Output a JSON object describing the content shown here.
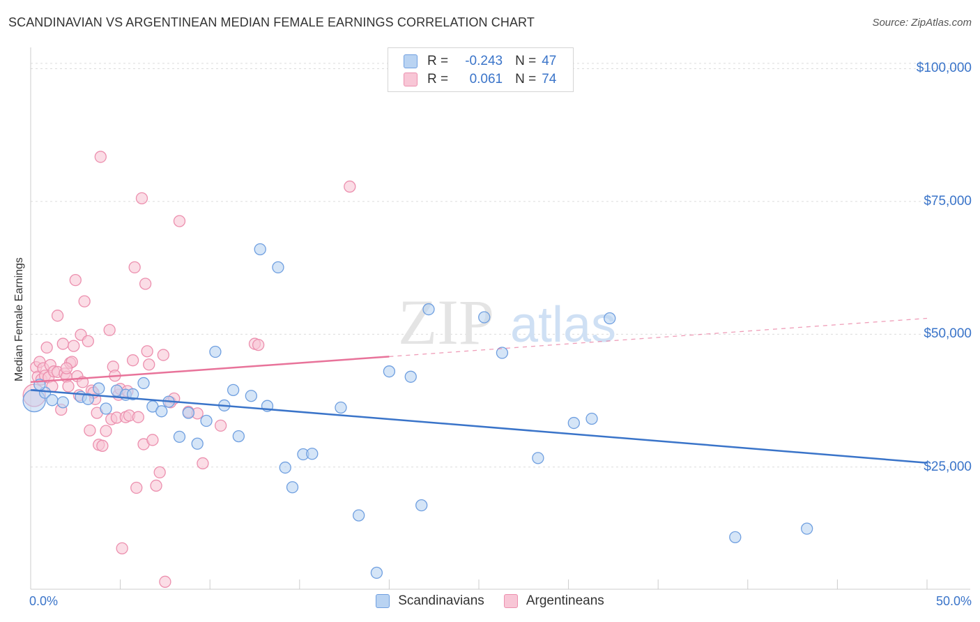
{
  "header": {
    "title": "SCANDINAVIAN VS ARGENTINEAN MEDIAN FEMALE EARNINGS CORRELATION CHART",
    "source": "Source: ZipAtlas.com"
  },
  "watermark": {
    "zip": "ZIP",
    "atlas": "atlas"
  },
  "legend": {
    "rows": [
      {
        "r_label": "R =",
        "r_value": "-0.243",
        "n_label": "N =",
        "n_value": "47",
        "color": "#6f9fe0"
      },
      {
        "r_label": "R =",
        "r_value": "0.061",
        "n_label": "N =",
        "n_value": "74",
        "color": "#ec8fae"
      }
    ]
  },
  "bottom_legend": {
    "series1": "Scandinavians",
    "series2": "Argentineans"
  },
  "colors": {
    "blue": "#3a74c9",
    "blue_fill": "#b9d3f2",
    "blue_stroke": "#6f9fe0",
    "pink": "#e8739a",
    "pink_fill": "#f8c6d6",
    "pink_stroke": "#ec8fae"
  },
  "chart_data": {
    "type": "scatter",
    "title": "SCANDINAVIAN VS ARGENTINEAN MEDIAN FEMALE EARNINGS CORRELATION CHART",
    "xlabel": "",
    "ylabel": "Median Female Earnings",
    "xlim": [
      0,
      50
    ],
    "ylim": [
      2000,
      104000
    ],
    "x_tick_labels": [
      "0.0%",
      "50.0%"
    ],
    "y_ticks": [
      25000,
      50000,
      75000,
      100000
    ],
    "y_tick_labels": [
      "$25,000",
      "$50,000",
      "$75,000",
      "$100,000"
    ],
    "grid": true,
    "series": [
      {
        "name": "Scandinavians",
        "r": -0.243,
        "n": 47,
        "trend": {
          "x0": 0,
          "y0": 39500,
          "x1": 50,
          "y1": 25800,
          "dashed_from": null
        },
        "points": [
          {
            "x": 0.2,
            "y": 37500,
            "big": true
          },
          {
            "x": 0.8,
            "y": 39000
          },
          {
            "x": 1.2,
            "y": 37600
          },
          {
            "x": 1.8,
            "y": 37200
          },
          {
            "x": 2.8,
            "y": 38200
          },
          {
            "x": 3.2,
            "y": 37800
          },
          {
            "x": 3.8,
            "y": 39800
          },
          {
            "x": 4.2,
            "y": 36000
          },
          {
            "x": 4.8,
            "y": 39400
          },
          {
            "x": 5.3,
            "y": 38600
          },
          {
            "x": 5.7,
            "y": 38700
          },
          {
            "x": 6.3,
            "y": 40800
          },
          {
            "x": 6.8,
            "y": 36400
          },
          {
            "x": 7.3,
            "y": 35500
          },
          {
            "x": 7.7,
            "y": 37300
          },
          {
            "x": 8.3,
            "y": 30700
          },
          {
            "x": 8.8,
            "y": 35200
          },
          {
            "x": 9.3,
            "y": 29400
          },
          {
            "x": 9.8,
            "y": 33700
          },
          {
            "x": 10.3,
            "y": 46700
          },
          {
            "x": 10.8,
            "y": 36600
          },
          {
            "x": 11.3,
            "y": 39500
          },
          {
            "x": 11.6,
            "y": 30800
          },
          {
            "x": 12.3,
            "y": 38400
          },
          {
            "x": 12.8,
            "y": 66000
          },
          {
            "x": 13.2,
            "y": 36500
          },
          {
            "x": 13.8,
            "y": 62600
          },
          {
            "x": 14.2,
            "y": 24900
          },
          {
            "x": 14.6,
            "y": 21200
          },
          {
            "x": 15.2,
            "y": 27400
          },
          {
            "x": 15.7,
            "y": 27500
          },
          {
            "x": 17.3,
            "y": 36200
          },
          {
            "x": 18.3,
            "y": 15900
          },
          {
            "x": 19.3,
            "y": 5100
          },
          {
            "x": 20.0,
            "y": 43000
          },
          {
            "x": 21.2,
            "y": 42000
          },
          {
            "x": 21.8,
            "y": 17800
          },
          {
            "x": 22.2,
            "y": 54700
          },
          {
            "x": 25.3,
            "y": 53200
          },
          {
            "x": 26.3,
            "y": 46500
          },
          {
            "x": 28.3,
            "y": 26700
          },
          {
            "x": 30.3,
            "y": 33300
          },
          {
            "x": 31.3,
            "y": 34100
          },
          {
            "x": 32.3,
            "y": 53000
          },
          {
            "x": 39.3,
            "y": 11800
          },
          {
            "x": 43.3,
            "y": 13400
          },
          {
            "x": 0.5,
            "y": 40500
          }
        ]
      },
      {
        "name": "Argentineans",
        "r": 0.061,
        "n": 74,
        "trend": {
          "x0": 0,
          "y0": 41000,
          "x1": 50,
          "y1": 53000,
          "dashed_from": 20
        },
        "points": [
          {
            "x": 0.2,
            "y": 38500,
            "big": true
          },
          {
            "x": 0.3,
            "y": 43800
          },
          {
            "x": 0.4,
            "y": 42000
          },
          {
            "x": 0.5,
            "y": 44800
          },
          {
            "x": 0.6,
            "y": 41500
          },
          {
            "x": 0.7,
            "y": 43600
          },
          {
            "x": 0.8,
            "y": 42200
          },
          {
            "x": 0.9,
            "y": 47500
          },
          {
            "x": 1.0,
            "y": 41900
          },
          {
            "x": 1.1,
            "y": 44200
          },
          {
            "x": 1.3,
            "y": 43000
          },
          {
            "x": 1.5,
            "y": 42900
          },
          {
            "x": 1.5,
            "y": 53500
          },
          {
            "x": 1.7,
            "y": 35800
          },
          {
            "x": 1.8,
            "y": 48200
          },
          {
            "x": 1.9,
            "y": 42600
          },
          {
            "x": 2.0,
            "y": 42000
          },
          {
            "x": 2.1,
            "y": 40200
          },
          {
            "x": 2.2,
            "y": 44600
          },
          {
            "x": 2.3,
            "y": 44800
          },
          {
            "x": 2.4,
            "y": 47800
          },
          {
            "x": 2.5,
            "y": 60200
          },
          {
            "x": 2.6,
            "y": 42100
          },
          {
            "x": 2.7,
            "y": 38500
          },
          {
            "x": 2.8,
            "y": 49900
          },
          {
            "x": 3.0,
            "y": 56200
          },
          {
            "x": 3.2,
            "y": 48700
          },
          {
            "x": 3.3,
            "y": 31900
          },
          {
            "x": 3.4,
            "y": 39400
          },
          {
            "x": 3.6,
            "y": 37800
          },
          {
            "x": 3.7,
            "y": 35200
          },
          {
            "x": 3.8,
            "y": 29200
          },
          {
            "x": 3.9,
            "y": 83400
          },
          {
            "x": 4.0,
            "y": 29000
          },
          {
            "x": 4.2,
            "y": 31800
          },
          {
            "x": 4.4,
            "y": 50800
          },
          {
            "x": 4.5,
            "y": 34000
          },
          {
            "x": 4.6,
            "y": 43900
          },
          {
            "x": 4.7,
            "y": 42200
          },
          {
            "x": 4.8,
            "y": 34300
          },
          {
            "x": 4.9,
            "y": 38600
          },
          {
            "x": 5.0,
            "y": 39700
          },
          {
            "x": 5.1,
            "y": 9700
          },
          {
            "x": 5.3,
            "y": 34400
          },
          {
            "x": 5.5,
            "y": 34700
          },
          {
            "x": 5.7,
            "y": 45100
          },
          {
            "x": 5.8,
            "y": 62600
          },
          {
            "x": 5.9,
            "y": 21100
          },
          {
            "x": 6.0,
            "y": 34400
          },
          {
            "x": 6.2,
            "y": 75600
          },
          {
            "x": 6.3,
            "y": 29300
          },
          {
            "x": 6.4,
            "y": 59500
          },
          {
            "x": 6.5,
            "y": 46800
          },
          {
            "x": 6.6,
            "y": 44300
          },
          {
            "x": 6.8,
            "y": 30100
          },
          {
            "x": 7.0,
            "y": 21500
          },
          {
            "x": 7.2,
            "y": 24000
          },
          {
            "x": 7.4,
            "y": 46100
          },
          {
            "x": 7.5,
            "y": 3400
          },
          {
            "x": 7.8,
            "y": 37200
          },
          {
            "x": 8.0,
            "y": 37900
          },
          {
            "x": 8.3,
            "y": 71300
          },
          {
            "x": 8.8,
            "y": 35400
          },
          {
            "x": 9.3,
            "y": 35100
          },
          {
            "x": 9.6,
            "y": 25700
          },
          {
            "x": 10.6,
            "y": 32800
          },
          {
            "x": 12.5,
            "y": 48200
          },
          {
            "x": 12.7,
            "y": 48000
          },
          {
            "x": 17.8,
            "y": 77800
          },
          {
            "x": 1.2,
            "y": 40200
          },
          {
            "x": 2.0,
            "y": 43600
          },
          {
            "x": 2.9,
            "y": 41000
          },
          {
            "x": 3.5,
            "y": 39000
          },
          {
            "x": 5.4,
            "y": 39300
          }
        ]
      }
    ]
  }
}
